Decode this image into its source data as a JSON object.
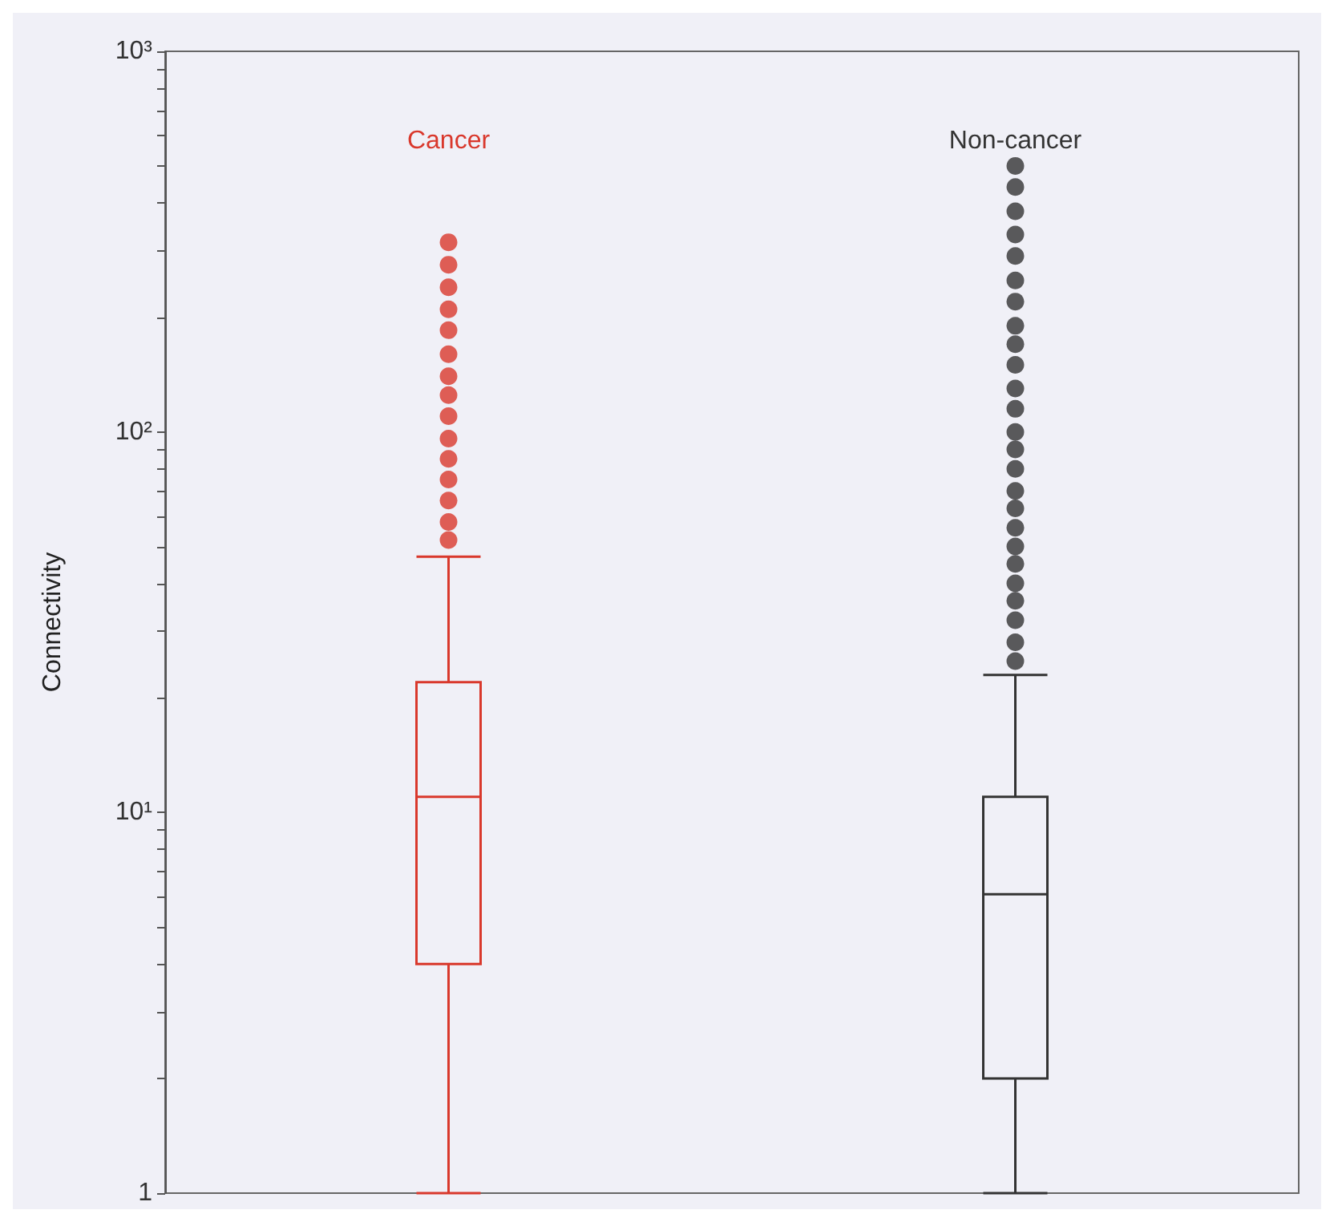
{
  "chart_data": {
    "type": "box",
    "ylabel": "Connectivity",
    "log": true,
    "categories": [
      "Cancer",
      "Non-cancer"
    ],
    "colors": [
      "#d9382c",
      "#333333"
    ],
    "marker": "circle",
    "ylim": [
      1,
      1000
    ],
    "yticks": [
      1,
      {
        "value": 2,
        "label": null
      },
      {
        "value": 3,
        "label": null
      },
      {
        "value": 4,
        "label": null
      },
      {
        "value": 5,
        "label": null
      },
      {
        "value": 6,
        "label": null
      },
      {
        "value": 7,
        "label": null
      },
      {
        "value": 8,
        "label": null
      },
      {
        "value": 9,
        "label": null
      },
      {
        "value": 10,
        "label": "10¹"
      },
      {
        "value": 20,
        "label": null
      },
      {
        "value": 30,
        "label": null
      },
      {
        "value": 40,
        "label": null
      },
      {
        "value": 50,
        "label": null
      },
      {
        "value": 60,
        "label": null
      },
      {
        "value": 70,
        "label": null
      },
      {
        "value": 80,
        "label": null
      },
      {
        "value": 90,
        "label": null
      },
      {
        "value": 100,
        "label": "10²"
      },
      {
        "value": 200,
        "label": null
      },
      {
        "value": 300,
        "label": null
      },
      {
        "value": 400,
        "label": null
      },
      {
        "value": 500,
        "label": null
      },
      {
        "value": 600,
        "label": null
      },
      {
        "value": 700,
        "label": null
      },
      {
        "value": 800,
        "label": null
      },
      {
        "value": 900,
        "label": null
      },
      {
        "value": 1000,
        "label": "10³"
      }
    ],
    "boxes": [
      {
        "low": 1,
        "q1": 4,
        "median": 11,
        "q3": 22,
        "high": 47,
        "outliers": [
          52,
          58,
          66,
          75,
          85,
          96,
          110,
          125,
          140,
          160,
          185,
          210,
          240,
          275,
          315
        ]
      },
      {
        "low": 1,
        "q1": 2,
        "median": 6.1,
        "q3": 11,
        "high": 23,
        "outliers": [
          25,
          28,
          32,
          36,
          40,
          45,
          50,
          56,
          63,
          70,
          80,
          90,
          100,
          115,
          130,
          150,
          170,
          190,
          220,
          250,
          290,
          330,
          380,
          440,
          500
        ]
      }
    ]
  }
}
